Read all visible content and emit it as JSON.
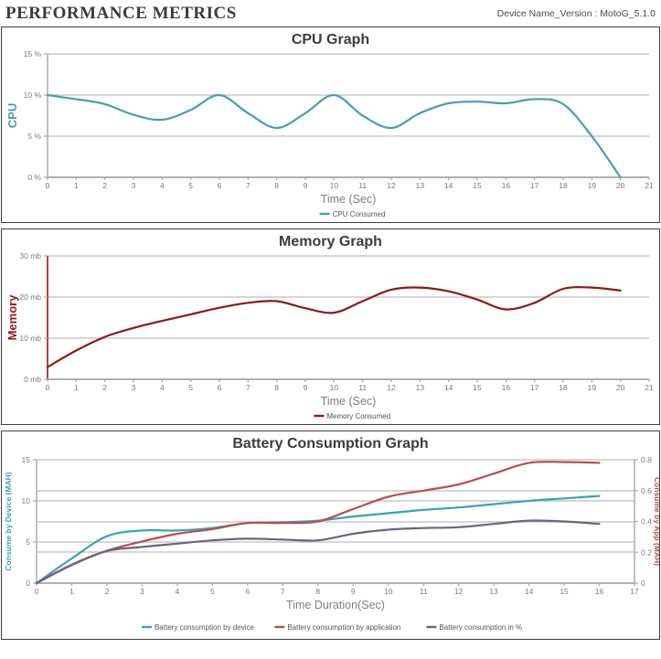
{
  "header": {
    "title": "PERFORMANCE METRICS",
    "device_label": "Device Name_Version : MotoG_5.1.0"
  },
  "colors": {
    "cpu_teal": "#42a2aa",
    "memory_red": "#8c1a1a",
    "battery_device_teal": "#38a4ad",
    "battery_app_red": "#b5504c",
    "battery_percent_purple": "#6e647d",
    "grid": "#c8c8c8",
    "axis_line": "#a8a8a8",
    "tick_text": "#7a7a7a",
    "legend_text": "#555555",
    "title_text": "#3c3c3c"
  },
  "chart_data": [
    {
      "id": "cpu",
      "type": "line",
      "title": "CPU Graph",
      "xlabel": "Time (Sec)",
      "x_min": 0,
      "x_max": 21,
      "x_ticks": [
        "0",
        "1",
        "2",
        "3",
        "4",
        "5",
        "6",
        "7",
        "8",
        "9",
        "10",
        "11",
        "12",
        "13",
        "14",
        "15",
        "16",
        "17",
        "18",
        "19",
        "20",
        "21"
      ],
      "grid": true,
      "legend_position": "bottom",
      "axes": {
        "left": {
          "label": "CPU",
          "label_color": "#42a2aa",
          "axis_color": "#b0b0b0",
          "min": 0,
          "max": 15,
          "ticks": [
            {
              "v": 15,
              "label": "15 %"
            },
            {
              "v": 10,
              "label": "10 %"
            },
            {
              "v": 5,
              "label": "5 %"
            },
            {
              "v": 0,
              "label": "0 %"
            }
          ]
        },
        "right": null
      },
      "series": [
        {
          "name": "CPU Consumed",
          "color": "#42a2aa",
          "axis": "left",
          "x": [
            0,
            1,
            2,
            3,
            4,
            5,
            6,
            7,
            8,
            9,
            10,
            11,
            12,
            13,
            14,
            15,
            16,
            17,
            18,
            19,
            20
          ],
          "values": [
            10,
            9.5,
            8.9,
            7.6,
            7.0,
            8.2,
            10.0,
            7.8,
            6.0,
            7.8,
            10.0,
            7.5,
            6.0,
            7.8,
            9.0,
            9.2,
            9.0,
            9.5,
            8.9,
            5.0,
            0.0
          ]
        }
      ]
    },
    {
      "id": "memory",
      "type": "line",
      "title": "Memory Graph",
      "xlabel": "Time (Sec)",
      "x_min": 0,
      "x_max": 21,
      "x_ticks": [
        "0",
        "1",
        "2",
        "3",
        "4",
        "5",
        "6",
        "7",
        "8",
        "9",
        "10",
        "11",
        "12",
        "13",
        "14",
        "15",
        "16",
        "17",
        "18",
        "19",
        "20",
        "21"
      ],
      "grid": true,
      "legend_position": "bottom",
      "axes": {
        "left": {
          "label": "Memory",
          "label_color": "#8c1a1a",
          "axis_color": "#8c1a1a",
          "min": 0,
          "max": 30,
          "ticks": [
            {
              "v": 30,
              "label": "30 mb"
            },
            {
              "v": 20,
              "label": "20 mb"
            },
            {
              "v": 10,
              "label": "10 mb"
            },
            {
              "v": 0,
              "label": "0 mb"
            }
          ]
        },
        "right": null
      },
      "series": [
        {
          "name": "Memory Consumed",
          "color": "#8c1a1a",
          "axis": "left",
          "x": [
            0,
            1,
            2,
            3,
            4,
            5,
            6,
            7,
            8,
            9,
            10,
            11,
            12,
            13,
            14,
            15,
            16,
            17,
            18,
            19,
            20
          ],
          "values": [
            3.0,
            7.0,
            10.3,
            12.5,
            14.2,
            15.8,
            17.4,
            18.6,
            19.0,
            17.3,
            16.2,
            19.0,
            21.8,
            22.3,
            21.4,
            19.4,
            17.0,
            18.6,
            22.0,
            22.3,
            21.6
          ]
        }
      ]
    },
    {
      "id": "battery",
      "type": "line",
      "title": "Battery Consumption Graph",
      "xlabel": "Time Duration(Sec)",
      "x_min": 0,
      "x_max": 17,
      "x_ticks": [
        "0",
        "1",
        "2",
        "3",
        "4",
        "5",
        "6",
        "7",
        "8",
        "9",
        "10",
        "11",
        "12",
        "13",
        "14",
        "15",
        "16",
        "17"
      ],
      "grid": true,
      "legend_position": "bottom",
      "axes": {
        "left": {
          "label": "Consume by Device (MAH)",
          "label_color": "#38a4ad",
          "axis_color": "#b0b0b0",
          "min": 0,
          "max": 15,
          "ticks": [
            {
              "v": 15,
              "label": "15"
            },
            {
              "v": 10,
              "label": "10"
            },
            {
              "v": 5,
              "label": "5"
            },
            {
              "v": 0,
              "label": "0"
            }
          ]
        },
        "right": {
          "label": "Consume by App (MAH)",
          "label_color": "#b5504c",
          "axis_color": "#b0b0b0",
          "min": 0,
          "max": 0.8,
          "ticks": [
            {
              "v": 0.8,
              "label": "0.8"
            },
            {
              "v": 0.6,
              "label": "0.6"
            },
            {
              "v": 0.4,
              "label": "0.4"
            },
            {
              "v": 0.2,
              "label": "0.2"
            },
            {
              "v": 0,
              "label": "0"
            }
          ]
        }
      },
      "series": [
        {
          "name": "Battery consumption by device",
          "color": "#38a4ad",
          "axis": "left",
          "x": [
            0,
            1,
            2,
            3,
            4,
            5,
            6,
            7,
            8,
            9,
            10,
            11,
            12,
            13,
            14,
            15,
            16
          ],
          "values": [
            0,
            3.0,
            5.7,
            6.4,
            6.4,
            6.7,
            7.3,
            7.4,
            7.6,
            8.1,
            8.5,
            8.9,
            9.2,
            9.6,
            10.0,
            10.3,
            10.6
          ]
        },
        {
          "name": "Battery consumption by application",
          "color": "#b5504c",
          "axis": "right",
          "x": [
            0,
            1,
            2,
            3,
            4,
            5,
            6,
            7,
            8,
            9,
            10,
            11,
            12,
            13,
            14,
            15,
            16
          ],
          "values": [
            0,
            0.12,
            0.21,
            0.27,
            0.32,
            0.35,
            0.39,
            0.39,
            0.4,
            0.48,
            0.56,
            0.6,
            0.64,
            0.71,
            0.78,
            0.785,
            0.78
          ]
        },
        {
          "name": "Battery consumption in %",
          "color": "#6e647d",
          "axis": "left",
          "x": [
            0,
            1,
            2,
            3,
            4,
            5,
            6,
            7,
            8,
            9,
            10,
            11,
            12,
            13,
            14,
            15,
            16
          ],
          "values": [
            0,
            2.2,
            3.9,
            4.4,
            4.8,
            5.2,
            5.4,
            5.3,
            5.2,
            6.0,
            6.5,
            6.7,
            6.8,
            7.2,
            7.6,
            7.5,
            7.2
          ]
        }
      ]
    }
  ]
}
